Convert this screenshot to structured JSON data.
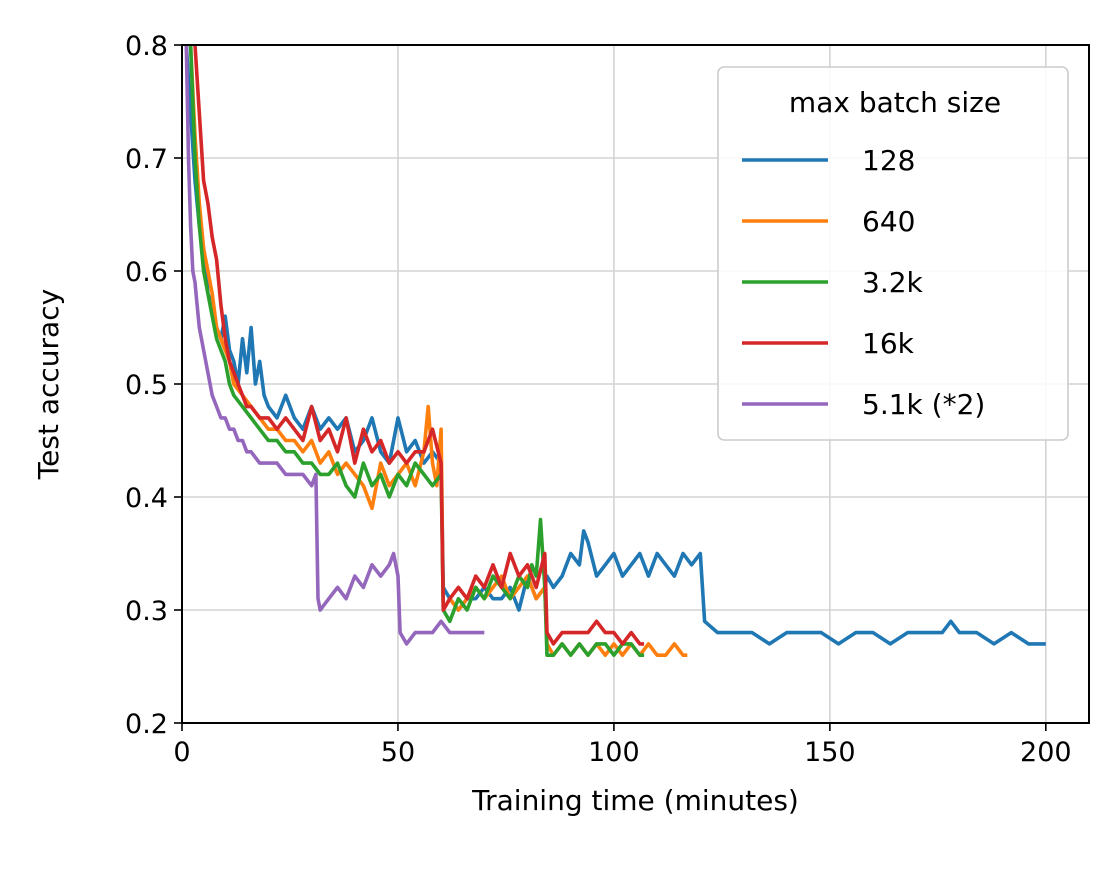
{
  "chart_data": {
    "type": "line",
    "xlabel": "Training time (minutes)",
    "ylabel": "Test accuracy",
    "xlim": [
      0,
      210
    ],
    "ylim": [
      0.2,
      0.8
    ],
    "xticks": [
      0,
      50,
      100,
      150,
      200
    ],
    "xtick_labels": [
      "0",
      "50",
      "100",
      "150",
      "200"
    ],
    "yticks": [
      0.2,
      0.3,
      0.4,
      0.5,
      0.6,
      0.7,
      0.8
    ],
    "ytick_labels": [
      "0.2",
      "0.3",
      "0.4",
      "0.5",
      "0.6",
      "0.7",
      "0.8"
    ],
    "grid": true,
    "legend": {
      "title": "max batch size",
      "placement": "top-right"
    },
    "series": [
      {
        "name": "128",
        "color": "#1f77b4",
        "x": [
          1,
          2,
          3,
          4,
          5,
          6,
          7,
          8,
          9,
          10,
          11,
          12,
          13,
          14,
          15,
          16,
          17,
          18,
          19,
          20,
          22,
          24,
          26,
          28,
          30,
          32,
          34,
          36,
          38,
          40,
          42,
          44,
          46,
          48,
          50,
          52,
          54,
          56,
          58,
          60,
          60.5,
          62,
          64,
          66,
          68,
          70,
          72,
          74,
          76,
          78,
          80,
          82,
          84,
          84.5,
          86,
          88,
          90,
          92,
          93,
          94,
          96,
          98,
          100,
          102,
          104,
          106,
          108,
          110,
          112,
          114,
          116,
          118,
          120,
          121,
          124,
          128,
          132,
          136,
          140,
          144,
          148,
          152,
          156,
          160,
          164,
          168,
          172,
          176,
          178,
          180,
          184,
          188,
          192,
          196,
          198,
          200
        ],
        "y": [
          0.8,
          0.74,
          0.68,
          0.64,
          0.62,
          0.58,
          0.57,
          0.55,
          0.54,
          0.56,
          0.53,
          0.52,
          0.5,
          0.54,
          0.51,
          0.55,
          0.5,
          0.52,
          0.49,
          0.48,
          0.47,
          0.49,
          0.47,
          0.46,
          0.48,
          0.46,
          0.47,
          0.46,
          0.47,
          0.44,
          0.45,
          0.47,
          0.44,
          0.43,
          0.47,
          0.44,
          0.45,
          0.43,
          0.44,
          0.43,
          0.32,
          0.31,
          0.3,
          0.31,
          0.31,
          0.32,
          0.31,
          0.31,
          0.32,
          0.3,
          0.33,
          0.31,
          0.32,
          0.33,
          0.32,
          0.33,
          0.35,
          0.34,
          0.37,
          0.36,
          0.33,
          0.34,
          0.35,
          0.33,
          0.34,
          0.35,
          0.33,
          0.35,
          0.34,
          0.33,
          0.35,
          0.34,
          0.35,
          0.29,
          0.28,
          0.28,
          0.28,
          0.27,
          0.28,
          0.28,
          0.28,
          0.27,
          0.28,
          0.28,
          0.27,
          0.28,
          0.28,
          0.28,
          0.29,
          0.28,
          0.28,
          0.27,
          0.28,
          0.27,
          0.27,
          0.27
        ]
      },
      {
        "name": "640",
        "color": "#ff7f0e",
        "x": [
          2,
          3,
          4,
          5,
          6,
          7,
          8,
          9,
          10,
          11,
          12,
          14,
          16,
          18,
          20,
          22,
          24,
          26,
          28,
          30,
          32,
          34,
          36,
          38,
          40,
          42,
          44,
          46,
          48,
          50,
          52,
          54,
          56,
          57,
          58,
          59,
          60,
          60.5,
          62,
          64,
          66,
          68,
          70,
          72,
          74,
          76,
          78,
          80,
          82,
          84,
          84.5,
          86,
          88,
          90,
          92,
          94,
          96,
          98,
          100,
          102,
          104,
          106,
          108,
          110,
          112,
          114,
          116,
          117
        ],
        "y": [
          0.8,
          0.72,
          0.66,
          0.62,
          0.6,
          0.58,
          0.55,
          0.54,
          0.53,
          0.52,
          0.5,
          0.49,
          0.48,
          0.47,
          0.46,
          0.46,
          0.45,
          0.45,
          0.44,
          0.45,
          0.43,
          0.44,
          0.42,
          0.43,
          0.42,
          0.41,
          0.39,
          0.43,
          0.41,
          0.42,
          0.43,
          0.41,
          0.44,
          0.48,
          0.43,
          0.41,
          0.46,
          0.3,
          0.31,
          0.3,
          0.31,
          0.32,
          0.31,
          0.32,
          0.33,
          0.31,
          0.32,
          0.33,
          0.31,
          0.32,
          0.27,
          0.26,
          0.27,
          0.26,
          0.27,
          0.26,
          0.27,
          0.26,
          0.27,
          0.26,
          0.27,
          0.26,
          0.27,
          0.26,
          0.26,
          0.27,
          0.26,
          0.26
        ]
      },
      {
        "name": "3.2k",
        "color": "#2ca02c",
        "x": [
          2,
          3,
          4,
          5,
          6,
          7,
          8,
          9,
          10,
          11,
          12,
          14,
          16,
          18,
          20,
          22,
          24,
          26,
          28,
          30,
          32,
          34,
          36,
          38,
          40,
          42,
          44,
          46,
          48,
          50,
          52,
          54,
          56,
          58,
          60,
          60.5,
          62,
          64,
          66,
          68,
          70,
          72,
          74,
          76,
          78,
          80,
          81,
          82,
          83,
          84,
          84.5,
          86,
          88,
          90,
          92,
          94,
          96,
          98,
          100,
          102,
          104,
          106,
          107
        ],
        "y": [
          0.8,
          0.7,
          0.64,
          0.6,
          0.58,
          0.56,
          0.54,
          0.53,
          0.52,
          0.5,
          0.49,
          0.48,
          0.47,
          0.46,
          0.45,
          0.45,
          0.44,
          0.44,
          0.43,
          0.43,
          0.42,
          0.42,
          0.43,
          0.41,
          0.4,
          0.43,
          0.41,
          0.42,
          0.4,
          0.42,
          0.41,
          0.43,
          0.42,
          0.41,
          0.42,
          0.3,
          0.29,
          0.31,
          0.3,
          0.32,
          0.31,
          0.33,
          0.32,
          0.31,
          0.33,
          0.32,
          0.34,
          0.33,
          0.38,
          0.32,
          0.26,
          0.26,
          0.27,
          0.26,
          0.27,
          0.26,
          0.27,
          0.27,
          0.26,
          0.27,
          0.27,
          0.26,
          0.26
        ]
      },
      {
        "name": "16k",
        "color": "#d62728",
        "x": [
          3,
          4,
          5,
          6,
          7,
          8,
          9,
          10,
          11,
          12,
          13,
          14,
          15,
          16,
          18,
          20,
          22,
          24,
          26,
          28,
          30,
          32,
          34,
          36,
          38,
          40,
          42,
          44,
          46,
          48,
          50,
          52,
          54,
          56,
          58,
          60,
          60.5,
          62,
          64,
          66,
          68,
          70,
          72,
          74,
          76,
          78,
          80,
          82,
          84,
          84.5,
          86,
          88,
          90,
          92,
          94,
          96,
          98,
          100,
          102,
          104,
          106,
          107
        ],
        "y": [
          0.8,
          0.74,
          0.68,
          0.66,
          0.63,
          0.61,
          0.57,
          0.54,
          0.52,
          0.51,
          0.5,
          0.49,
          0.48,
          0.48,
          0.47,
          0.47,
          0.46,
          0.47,
          0.46,
          0.45,
          0.48,
          0.45,
          0.46,
          0.44,
          0.47,
          0.43,
          0.46,
          0.44,
          0.45,
          0.43,
          0.44,
          0.43,
          0.44,
          0.44,
          0.46,
          0.43,
          0.3,
          0.31,
          0.32,
          0.31,
          0.33,
          0.32,
          0.34,
          0.32,
          0.35,
          0.33,
          0.34,
          0.32,
          0.35,
          0.28,
          0.27,
          0.28,
          0.28,
          0.28,
          0.28,
          0.29,
          0.28,
          0.28,
          0.27,
          0.28,
          0.27,
          0.27
        ]
      },
      {
        "name": "5.1k (*2)",
        "color": "#9467bd",
        "x": [
          1,
          1.5,
          2,
          2.5,
          3,
          3.5,
          4,
          5,
          6,
          7,
          8,
          9,
          10,
          11,
          12,
          13,
          14,
          15,
          16,
          18,
          20,
          22,
          24,
          26,
          28,
          30,
          31,
          31.5,
          32,
          34,
          36,
          38,
          40,
          42,
          44,
          46,
          48,
          49,
          50,
          50.5,
          52,
          54,
          56,
          58,
          60,
          62,
          64,
          66,
          68,
          70
        ],
        "y": [
          0.8,
          0.7,
          0.64,
          0.6,
          0.59,
          0.57,
          0.55,
          0.53,
          0.51,
          0.49,
          0.48,
          0.47,
          0.47,
          0.46,
          0.46,
          0.45,
          0.45,
          0.44,
          0.44,
          0.43,
          0.43,
          0.43,
          0.42,
          0.42,
          0.42,
          0.41,
          0.42,
          0.31,
          0.3,
          0.31,
          0.32,
          0.31,
          0.33,
          0.32,
          0.34,
          0.33,
          0.34,
          0.35,
          0.33,
          0.28,
          0.27,
          0.28,
          0.28,
          0.28,
          0.29,
          0.28,
          0.28,
          0.28,
          0.28,
          0.28
        ]
      }
    ]
  }
}
